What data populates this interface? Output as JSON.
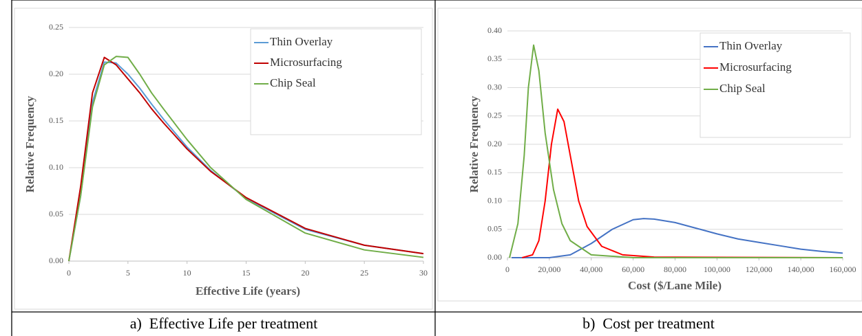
{
  "chart_data": [
    {
      "type": "line",
      "caption": "a)  Effective Life per treatment",
      "xlabel": "Effective Life (years)",
      "ylabel": "Relative Frequency",
      "xlim": [
        0,
        30
      ],
      "xticks": [
        0,
        5,
        10,
        15,
        20,
        25,
        30
      ],
      "ylim": [
        0,
        0.25
      ],
      "yticks": [
        {
          "value": 0,
          "label": "0.00"
        },
        {
          "value": 0.05,
          "label": "0.05"
        },
        {
          "value": 0.1,
          "label": "0.10"
        },
        {
          "value": 0.15,
          "label": "0.15"
        },
        {
          "value": 0.2,
          "label": "0.20"
        },
        {
          "value": 0.25,
          "label": "0.25"
        }
      ],
      "grid": true,
      "legend": "upper right",
      "series": [
        {
          "name": "Thin Overlay",
          "color": "#5b9bd5",
          "x": [
            0,
            1,
            2,
            3,
            4,
            5,
            6,
            7,
            8,
            10,
            12,
            15,
            20,
            25,
            30
          ],
          "values": [
            0,
            0.07,
            0.17,
            0.213,
            0.212,
            0.2,
            0.185,
            0.168,
            0.152,
            0.122,
            0.097,
            0.067,
            0.034,
            0.017,
            0.008
          ]
        },
        {
          "name": "Microsurfacing",
          "color": "#c00000",
          "x": [
            0,
            1,
            2,
            3,
            4,
            5,
            6,
            7,
            8,
            10,
            12,
            15,
            20,
            25,
            30
          ],
          "values": [
            0,
            0.08,
            0.18,
            0.218,
            0.21,
            0.195,
            0.18,
            0.163,
            0.148,
            0.12,
            0.096,
            0.068,
            0.035,
            0.017,
            0.008
          ]
        },
        {
          "name": "Chip Seal",
          "color": "#70ad47",
          "x": [
            0,
            1,
            2,
            3,
            4,
            5,
            6,
            7,
            8,
            10,
            12,
            15,
            20,
            25,
            30
          ],
          "values": [
            0,
            0.07,
            0.165,
            0.21,
            0.219,
            0.218,
            0.2,
            0.18,
            0.163,
            0.13,
            0.1,
            0.066,
            0.03,
            0.012,
            0.004
          ]
        }
      ]
    },
    {
      "type": "line",
      "caption": "b)  Cost per treatment",
      "xlabel": "Cost ($/Lane Mile)",
      "ylabel": "Relative Frequency",
      "xlim": [
        0,
        160000
      ],
      "xticks": [
        0,
        {
          "value": 20000,
          "label": "20,000"
        },
        {
          "value": 40000,
          "label": "40,000"
        },
        {
          "value": 60000,
          "label": "60,000"
        },
        {
          "value": 80000,
          "label": "80,000"
        },
        {
          "value": 100000,
          "label": "100,000"
        },
        {
          "value": 120000,
          "label": "120,000"
        },
        {
          "value": 140000,
          "label": "140,000"
        },
        {
          "value": 160000,
          "label": "160,000"
        }
      ],
      "ylim": [
        0,
        0.4
      ],
      "yticks": [
        {
          "value": 0,
          "label": "0.00"
        },
        {
          "value": 0.05,
          "label": "0.05"
        },
        {
          "value": 0.1,
          "label": "0.10"
        },
        {
          "value": 0.15,
          "label": "0.15"
        },
        {
          "value": 0.2,
          "label": "0.20"
        },
        {
          "value": 0.25,
          "label": "0.25"
        },
        {
          "value": 0.3,
          "label": "0.30"
        },
        {
          "value": 0.35,
          "label": "0.35"
        },
        {
          "value": 0.4,
          "label": "0.40"
        }
      ],
      "grid": true,
      "legend": "upper right",
      "series": [
        {
          "name": "Thin Overlay",
          "color": "#4472c4",
          "x": [
            2000,
            20000,
            30000,
            40000,
            50000,
            60000,
            65000,
            70000,
            80000,
            90000,
            100000,
            110000,
            120000,
            130000,
            140000,
            150000,
            160000
          ],
          "values": [
            0,
            0,
            0.005,
            0.025,
            0.05,
            0.067,
            0.069,
            0.068,
            0.062,
            0.052,
            0.042,
            0.033,
            0.027,
            0.021,
            0.015,
            0.011,
            0.008
          ]
        },
        {
          "name": "Microsurfacing",
          "color": "#ff0000",
          "x": [
            7000,
            12000,
            15000,
            18000,
            21000,
            24000,
            27000,
            30000,
            34000,
            38000,
            45000,
            55000,
            70000,
            160000
          ],
          "values": [
            0,
            0.005,
            0.03,
            0.1,
            0.2,
            0.262,
            0.24,
            0.18,
            0.1,
            0.055,
            0.02,
            0.005,
            0.001,
            0
          ]
        },
        {
          "name": "Chip Seal",
          "color": "#70ad47",
          "x": [
            1000,
            5000,
            8000,
            10000,
            12500,
            15000,
            18000,
            22000,
            26000,
            30000,
            40000,
            60000,
            160000
          ],
          "values": [
            0,
            0.06,
            0.18,
            0.3,
            0.375,
            0.33,
            0.22,
            0.12,
            0.06,
            0.03,
            0.005,
            0,
            0
          ]
        }
      ]
    }
  ]
}
